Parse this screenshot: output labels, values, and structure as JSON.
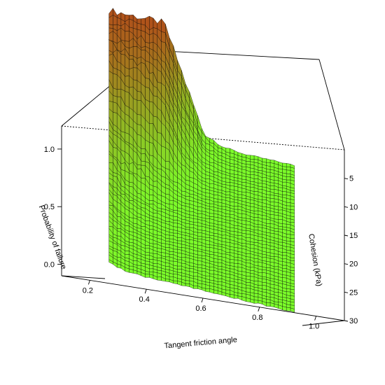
{
  "chart_data": {
    "type": "surface3d",
    "title": "",
    "xlabel": "Tangent friction angle",
    "ylabel": "Cohesion (kPa)",
    "zlabel": "Probability of failure",
    "xlim": [
      0.1,
      1.1
    ],
    "ylim": [
      0,
      30
    ],
    "zlim": [
      -0.1,
      1.2
    ],
    "x_ticks": [
      "0.2",
      "0.4",
      "0.6",
      "0.8",
      "1.0"
    ],
    "y_ticks": [
      "5",
      "10",
      "15",
      "20",
      "25",
      "30"
    ],
    "z_ticks": [
      "0.0",
      "0.5",
      "1.0"
    ],
    "grid_resolution": [
      46,
      46
    ],
    "surface_description": "Probability of failure is ~1.0 for low cohesion (about 0–6 kPa) and low friction (tan phi about 0.12–0.43); it falls steeply along both axes and is ~0 elsewhere, with a small noisy rise near the lowest friction values.",
    "colormap": {
      "low": "#7cff2a",
      "high": "#b0501a"
    },
    "x_grid": [
      0.12,
      0.2,
      0.3,
      0.4,
      0.5,
      0.6,
      0.7,
      0.8,
      0.9,
      1.0,
      1.06
    ],
    "y_grid": [
      0,
      5,
      10,
      15,
      20,
      25,
      30
    ],
    "z_values": [
      [
        1.0,
        1.0,
        1.0,
        1.0,
        0.55,
        0.1,
        0.02,
        0.0,
        0.0,
        0.0,
        0.0
      ],
      [
        0.85,
        0.8,
        0.75,
        0.6,
        0.2,
        0.03,
        0.0,
        0.0,
        0.0,
        0.0,
        0.0
      ],
      [
        0.45,
        0.35,
        0.25,
        0.12,
        0.03,
        0.0,
        0.0,
        0.0,
        0.0,
        0.0,
        0.0
      ],
      [
        0.25,
        0.15,
        0.06,
        0.02,
        0.0,
        0.0,
        0.0,
        0.0,
        0.0,
        0.0,
        0.0
      ],
      [
        0.15,
        0.06,
        0.02,
        0.0,
        0.0,
        0.0,
        0.0,
        0.0,
        0.0,
        0.0,
        0.0
      ],
      [
        0.08,
        0.03,
        0.0,
        0.0,
        0.0,
        0.0,
        0.0,
        0.0,
        0.0,
        0.0,
        0.0
      ],
      [
        0.05,
        0.01,
        0.0,
        0.0,
        0.0,
        0.0,
        0.0,
        0.0,
        0.0,
        0.0,
        0.0
      ]
    ]
  }
}
